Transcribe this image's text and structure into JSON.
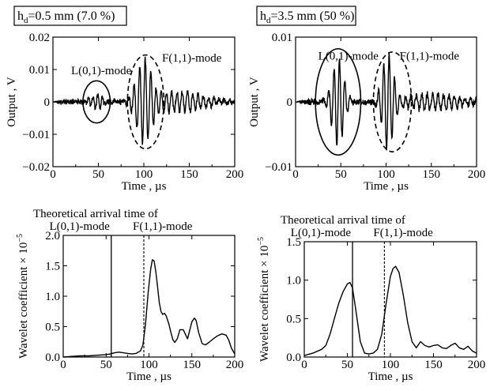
{
  "chart_data": [
    {
      "id": "p1",
      "type": "line",
      "condition_label": "h_d=0.5 mm (7.0 %)",
      "condition_main": "h",
      "condition_sub": "d",
      "condition_rest": "=0.5 mm (7.0 %)",
      "xlabel": "Time , µs",
      "ylabel": "Output , V",
      "xlim": [
        0,
        200
      ],
      "ylim": [
        -0.02,
        0.02
      ],
      "xticks": [
        "0",
        "50",
        "100",
        "150",
        "200"
      ],
      "yticks": [
        "−0.02",
        "−0.01",
        "0",
        "0.01",
        "0.02"
      ],
      "annotations": [
        {
          "text": "L(0,1)-mode",
          "x": 20,
          "y": 0.0085,
          "ring_center": [
            48,
            0
          ],
          "ring_radius": [
            15,
            0.0065
          ],
          "style": "solid"
        },
        {
          "text": "F(1,1)-mode",
          "x": 120,
          "y": 0.0125,
          "ring_center": [
            102,
            0
          ],
          "ring_radius": [
            20,
            0.0145
          ],
          "style": "dashed"
        }
      ],
      "signal": {
        "description": "time-domain waveform",
        "noise_amplitude": 0.0009,
        "packets": [
          {
            "center": 48,
            "width": 9,
            "amplitude": 0.0022,
            "period": 5.2
          },
          {
            "center": 100,
            "width": 11,
            "amplitude": 0.0118,
            "period": 6.2
          },
          {
            "center": 135,
            "width": 40,
            "amplitude": 0.0032,
            "period": 5.8
          }
        ]
      }
    },
    {
      "id": "p2",
      "type": "line",
      "condition_label": "h_d=3.5 mm (50 %)",
      "condition_main": "h",
      "condition_sub": "d",
      "condition_rest": "=3.5 mm (50 %)",
      "xlabel": "Time , µs",
      "ylabel": "Output , V",
      "xlim": [
        0,
        200
      ],
      "ylim": [
        -0.01,
        0.01
      ],
      "xticks": [
        "0",
        "50",
        "100",
        "150",
        "200"
      ],
      "yticks": [
        "−0.01",
        "0",
        "0.01"
      ],
      "annotations": [
        {
          "text": "L(0,1)-mode",
          "x": 25,
          "y": 0.0065,
          "ring_center": [
            47,
            0
          ],
          "ring_radius": [
            25,
            0.0082
          ],
          "style": "solid"
        },
        {
          "text": "F(1,1)-mode",
          "x": 115,
          "y": 0.0065,
          "ring_center": [
            107,
            0
          ],
          "ring_radius": [
            21,
            0.0077
          ],
          "style": "dashed"
        }
      ],
      "signal": {
        "description": "time-domain waveform",
        "noise_amplitude": 0.0005,
        "packets": [
          {
            "center": 47,
            "width": 9,
            "amplitude": 0.0066,
            "period": 6.0
          },
          {
            "center": 102,
            "width": 8,
            "amplitude": 0.0072,
            "period": 6.0
          },
          {
            "center": 150,
            "width": 45,
            "amplitude": 0.0012,
            "period": 6.0
          }
        ]
      }
    },
    {
      "id": "p3",
      "type": "line",
      "xlabel": "Time , µs",
      "ylabel": "Wavelet coefficient × 10",
      "ylabel_exponent": "−5",
      "xlim": [
        0,
        200
      ],
      "ylim": [
        0,
        2.0
      ],
      "xticks": [
        "0",
        "50",
        "100",
        "150",
        "200"
      ],
      "yticks": [
        "0.0",
        "0.5",
        "1.0",
        "1.5",
        "2.0"
      ],
      "annotation_title": "Theoretical arrival time of",
      "annotation_l_label": "L(0,1)-mode",
      "annotation_f_label": "F(1,1)-mode",
      "l_arrival": 56,
      "f_arrival": 94,
      "x": [
        0,
        10,
        20,
        30,
        40,
        50,
        55,
        60,
        65,
        70,
        75,
        80,
        85,
        90,
        93,
        96,
        99,
        102,
        104,
        106,
        108,
        110,
        112,
        114,
        116,
        118,
        120,
        123,
        126,
        128,
        130,
        133,
        136,
        140,
        145,
        150,
        153,
        155,
        158,
        162,
        166,
        170,
        175,
        180,
        185,
        190,
        193,
        196,
        200
      ],
      "y": [
        0.0,
        0.01,
        0.02,
        0.02,
        0.03,
        0.04,
        0.05,
        0.07,
        0.08,
        0.07,
        0.06,
        0.05,
        0.06,
        0.1,
        0.2,
        0.55,
        1.05,
        1.45,
        1.6,
        1.58,
        1.4,
        1.15,
        0.9,
        0.75,
        0.7,
        0.72,
        0.68,
        0.55,
        0.38,
        0.28,
        0.24,
        0.3,
        0.45,
        0.45,
        0.3,
        0.58,
        0.64,
        0.6,
        0.4,
        0.22,
        0.2,
        0.24,
        0.3,
        0.35,
        0.38,
        0.36,
        0.28,
        0.15,
        0.05
      ]
    },
    {
      "id": "p4",
      "type": "line",
      "xlabel": "Time , µs",
      "ylabel": "Wavelet coefficient × 10",
      "ylabel_exponent": "−5",
      "xlim": [
        0,
        200
      ],
      "ylim": [
        0,
        1.5
      ],
      "xticks": [
        "0",
        "50",
        "100",
        "150",
        "200"
      ],
      "yticks": [
        "0.0",
        "0.5",
        "1.0",
        "1.5"
      ],
      "annotation_title": "Theoretical arrival time of",
      "annotation_l_label": "L(0,1)-mode",
      "annotation_f_label": "F(1,1)-mode",
      "l_arrival": 56,
      "f_arrival": 93,
      "x": [
        0,
        10,
        20,
        25,
        30,
        35,
        40,
        45,
        50,
        53,
        56,
        60,
        65,
        70,
        75,
        80,
        85,
        90,
        95,
        100,
        103,
        106,
        110,
        115,
        120,
        125,
        130,
        135,
        140,
        145,
        150,
        155,
        160,
        165,
        170,
        175,
        180,
        185,
        190,
        195,
        200
      ],
      "y": [
        0.02,
        0.05,
        0.1,
        0.15,
        0.3,
        0.5,
        0.7,
        0.85,
        0.95,
        0.97,
        0.9,
        0.6,
        0.2,
        0.05,
        0.04,
        0.05,
        0.1,
        0.3,
        0.7,
        1.05,
        1.15,
        1.18,
        1.1,
        0.8,
        0.45,
        0.2,
        0.12,
        0.2,
        0.15,
        0.13,
        0.15,
        0.16,
        0.12,
        0.11,
        0.15,
        0.18,
        0.12,
        0.1,
        0.14,
        0.08,
        0.05
      ]
    }
  ]
}
